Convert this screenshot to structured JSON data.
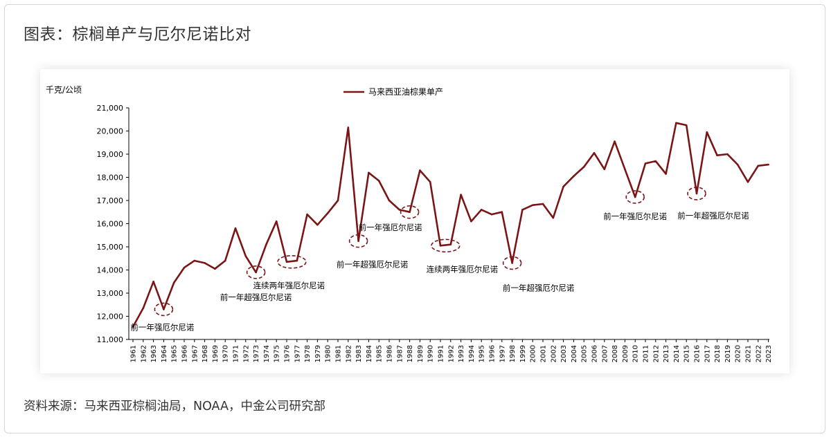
{
  "page": {
    "title": "图表：棕榈单产与厄尔尼诺比对",
    "source": "资料来源：马来西亚棕榈油局，NOAA，中金公司研究部"
  },
  "colors": {
    "series": "#7b1515",
    "text": "#333333"
  },
  "chart_data": {
    "type": "line",
    "ylabel": "千克/公顷",
    "ylim": [
      11000,
      21000
    ],
    "yticks": [
      11000,
      12000,
      13000,
      14000,
      15000,
      16000,
      17000,
      18000,
      19000,
      20000,
      21000
    ],
    "ytick_labels": [
      "11,000",
      "12,000",
      "13,000",
      "14,000",
      "15,000",
      "16,000",
      "17,000",
      "18,000",
      "19,000",
      "20,000",
      "21,000"
    ],
    "legend_position": "top-center",
    "grid": false,
    "x": [
      "1961",
      "1962",
      "1963",
      "1964",
      "1965",
      "1966",
      "1967",
      "1968",
      "1969",
      "1970",
      "1971",
      "1972",
      "1973",
      "1974",
      "1975",
      "1976",
      "1977",
      "1978",
      "1979",
      "1980",
      "1981",
      "1982",
      "1983",
      "1984",
      "1985",
      "1986",
      "1987",
      "1988",
      "1989",
      "1990",
      "1991",
      "1992",
      "1993",
      "1994",
      "1995",
      "1996",
      "1997",
      "1998",
      "1999",
      "2000",
      "2001",
      "2002",
      "2003",
      "2004",
      "2005",
      "2006",
      "2007",
      "2008",
      "2009",
      "2010",
      "2011",
      "2012",
      "2013",
      "2014",
      "2015",
      "2016",
      "2017",
      "2018",
      "2019",
      "2020",
      "2021",
      "2022",
      "2023"
    ],
    "series": [
      {
        "name": "马来西亚油棕果单产",
        "values": [
          11550,
          12350,
          13500,
          12300,
          13450,
          14100,
          14400,
          14300,
          14050,
          14400,
          15800,
          14600,
          13900,
          15100,
          16100,
          14350,
          14400,
          16400,
          15950,
          16450,
          17000,
          20150,
          15250,
          18200,
          17850,
          17000,
          16600,
          16500,
          18300,
          17800,
          15050,
          15100,
          17250,
          16100,
          16600,
          16400,
          16500,
          14300,
          16600,
          16800,
          16850,
          16250,
          17600,
          18050,
          18450,
          19050,
          18350,
          19550,
          18350,
          17150,
          18600,
          18700,
          18150,
          20350,
          20250,
          17300,
          19950,
          18950,
          19000,
          18550,
          17800,
          18500,
          18550
        ]
      }
    ],
    "annotations": [
      {
        "text": "前一年强厄尔尼诺",
        "years": [
          "1964"
        ]
      },
      {
        "text": "前一年超强厄尔尼诺",
        "years": [
          "1973"
        ]
      },
      {
        "text": "连续两年强厄尔尼诺",
        "years": [
          "1976",
          "1977"
        ]
      },
      {
        "text": "前一年超强厄尔尼诺",
        "years": [
          "1983"
        ]
      },
      {
        "text": "前一年强厄尔尼诺",
        "years": [
          "1988"
        ]
      },
      {
        "text": "连续两年强厄尔尼诺",
        "years": [
          "1991",
          "1992"
        ]
      },
      {
        "text": "前一年超强厄尔尼诺",
        "years": [
          "1998"
        ]
      },
      {
        "text": "前一年强厄尔尼诺",
        "years": [
          "2010"
        ]
      },
      {
        "text": "前一年超强厄尔尼诺",
        "years": [
          "2016"
        ]
      }
    ]
  }
}
